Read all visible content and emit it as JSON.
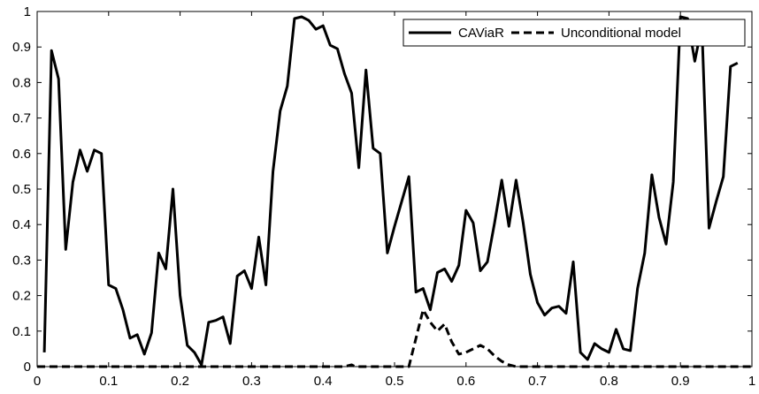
{
  "chart_data": {
    "type": "line",
    "title": "",
    "xlabel": "",
    "ylabel": "",
    "xlim": [
      0,
      1
    ],
    "ylim": [
      0,
      1
    ],
    "grid": false,
    "legend_position": "top-right",
    "x_ticks": [
      "0",
      "0.1",
      "0.2",
      "0.3",
      "0.4",
      "0.5",
      "0.6",
      "0.7",
      "0.8",
      "0.9",
      "1"
    ],
    "y_ticks": [
      "0",
      "0.1",
      "0.2",
      "0.3",
      "0.4",
      "0.5",
      "0.6",
      "0.7",
      "0.8",
      "0.9",
      "1"
    ],
    "series": [
      {
        "name": "CAViaR",
        "style": "solid",
        "color": "#000000",
        "points": [
          [
            0.01,
            0.04
          ],
          [
            0.02,
            0.89
          ],
          [
            0.03,
            0.81
          ],
          [
            0.04,
            0.33
          ],
          [
            0.05,
            0.52
          ],
          [
            0.06,
            0.61
          ],
          [
            0.07,
            0.55
          ],
          [
            0.08,
            0.61
          ],
          [
            0.09,
            0.6
          ],
          [
            0.1,
            0.23
          ],
          [
            0.11,
            0.22
          ],
          [
            0.12,
            0.16
          ],
          [
            0.13,
            0.08
          ],
          [
            0.14,
            0.09
          ],
          [
            0.15,
            0.035
          ],
          [
            0.16,
            0.095
          ],
          [
            0.17,
            0.32
          ],
          [
            0.18,
            0.275
          ],
          [
            0.19,
            0.5
          ],
          [
            0.2,
            0.2
          ],
          [
            0.21,
            0.06
          ],
          [
            0.22,
            0.04
          ],
          [
            0.23,
            0.005
          ],
          [
            0.24,
            0.125
          ],
          [
            0.25,
            0.13
          ],
          [
            0.26,
            0.14
          ],
          [
            0.27,
            0.065
          ],
          [
            0.28,
            0.255
          ],
          [
            0.29,
            0.27
          ],
          [
            0.3,
            0.22
          ],
          [
            0.31,
            0.365
          ],
          [
            0.32,
            0.23
          ],
          [
            0.33,
            0.55
          ],
          [
            0.34,
            0.72
          ],
          [
            0.35,
            0.79
          ],
          [
            0.36,
            0.98
          ],
          [
            0.37,
            0.985
          ],
          [
            0.38,
            0.975
          ],
          [
            0.39,
            0.95
          ],
          [
            0.4,
            0.96
          ],
          [
            0.41,
            0.905
          ],
          [
            0.42,
            0.895
          ],
          [
            0.43,
            0.825
          ],
          [
            0.44,
            0.77
          ],
          [
            0.45,
            0.56
          ],
          [
            0.46,
            0.835
          ],
          [
            0.47,
            0.615
          ],
          [
            0.48,
            0.6
          ],
          [
            0.49,
            0.32
          ],
          [
            0.5,
            0.395
          ],
          [
            0.51,
            0.465
          ],
          [
            0.52,
            0.535
          ],
          [
            0.53,
            0.21
          ],
          [
            0.54,
            0.22
          ],
          [
            0.55,
            0.16
          ],
          [
            0.56,
            0.265
          ],
          [
            0.57,
            0.275
          ],
          [
            0.58,
            0.24
          ],
          [
            0.59,
            0.285
          ],
          [
            0.6,
            0.44
          ],
          [
            0.61,
            0.405
          ],
          [
            0.62,
            0.27
          ],
          [
            0.63,
            0.295
          ],
          [
            0.64,
            0.405
          ],
          [
            0.65,
            0.525
          ],
          [
            0.66,
            0.395
          ],
          [
            0.67,
            0.525
          ],
          [
            0.68,
            0.405
          ],
          [
            0.69,
            0.26
          ],
          [
            0.7,
            0.18
          ],
          [
            0.71,
            0.145
          ],
          [
            0.72,
            0.165
          ],
          [
            0.73,
            0.17
          ],
          [
            0.74,
            0.15
          ],
          [
            0.75,
            0.295
          ],
          [
            0.76,
            0.04
          ],
          [
            0.77,
            0.02
          ],
          [
            0.78,
            0.065
          ],
          [
            0.79,
            0.05
          ],
          [
            0.8,
            0.04
          ],
          [
            0.81,
            0.105
          ],
          [
            0.82,
            0.05
          ],
          [
            0.83,
            0.045
          ],
          [
            0.84,
            0.22
          ],
          [
            0.85,
            0.32
          ],
          [
            0.86,
            0.54
          ],
          [
            0.87,
            0.42
          ],
          [
            0.88,
            0.345
          ],
          [
            0.89,
            0.52
          ],
          [
            0.9,
            0.985
          ],
          [
            0.91,
            0.98
          ],
          [
            0.92,
            0.86
          ],
          [
            0.93,
            0.96
          ],
          [
            0.94,
            0.39
          ],
          [
            0.95,
            0.465
          ],
          [
            0.96,
            0.535
          ],
          [
            0.97,
            0.845
          ],
          [
            0.98,
            0.855
          ]
        ]
      },
      {
        "name": "Unconditional model",
        "style": "dashed",
        "color": "#000000",
        "points": [
          [
            0.0,
            0.0
          ],
          [
            0.43,
            0.0
          ],
          [
            0.44,
            0.005
          ],
          [
            0.445,
            0.0
          ],
          [
            0.52,
            0.0
          ],
          [
            0.54,
            0.16
          ],
          [
            0.55,
            0.125
          ],
          [
            0.56,
            0.1
          ],
          [
            0.57,
            0.12
          ],
          [
            0.58,
            0.07
          ],
          [
            0.59,
            0.035
          ],
          [
            0.6,
            0.04
          ],
          [
            0.61,
            0.05
          ],
          [
            0.62,
            0.06
          ],
          [
            0.63,
            0.05
          ],
          [
            0.64,
            0.03
          ],
          [
            0.65,
            0.015
          ],
          [
            0.66,
            0.005
          ],
          [
            0.67,
            0.0
          ],
          [
            1.0,
            0.0
          ]
        ]
      }
    ]
  }
}
